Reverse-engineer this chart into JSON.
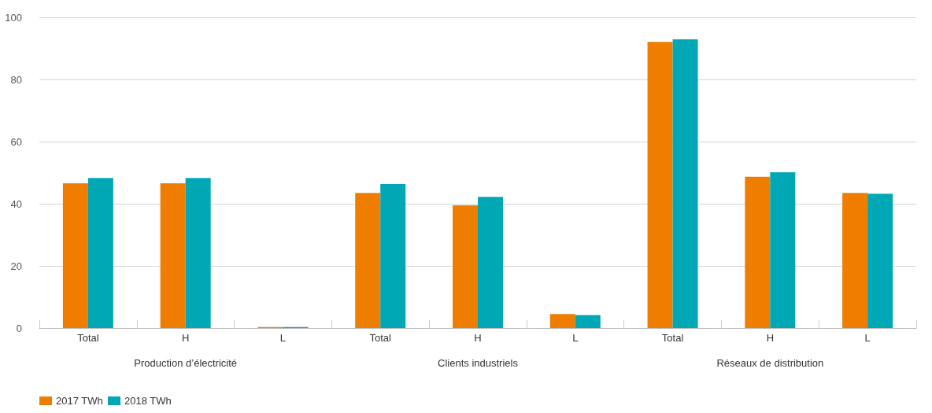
{
  "chart_data": {
    "type": "bar",
    "categories": [
      "Total",
      "H",
      "L",
      "Total",
      "H",
      "L",
      "Total",
      "H",
      "L"
    ],
    "series": [
      {
        "name": "2017 TWh",
        "color": "#ee7d00",
        "values": [
          46.6,
          46.6,
          0.3,
          43.5,
          39.5,
          4.5,
          92.1,
          48.7,
          43.5
        ]
      },
      {
        "name": "2018 TWh",
        "color": "#00a8b5",
        "values": [
          48.3,
          48.3,
          0.3,
          46.3,
          42.2,
          4.2,
          92.9,
          50.1,
          43.2
        ]
      }
    ],
    "annotations": [
      "Production d’électricité",
      "Clients industriels",
      "Réseaux de distribution"
    ],
    "ylim": [
      0,
      100
    ],
    "yticks": [
      0,
      20,
      40,
      60,
      80,
      100
    ],
    "grid": "y",
    "legend": "bottom left"
  }
}
